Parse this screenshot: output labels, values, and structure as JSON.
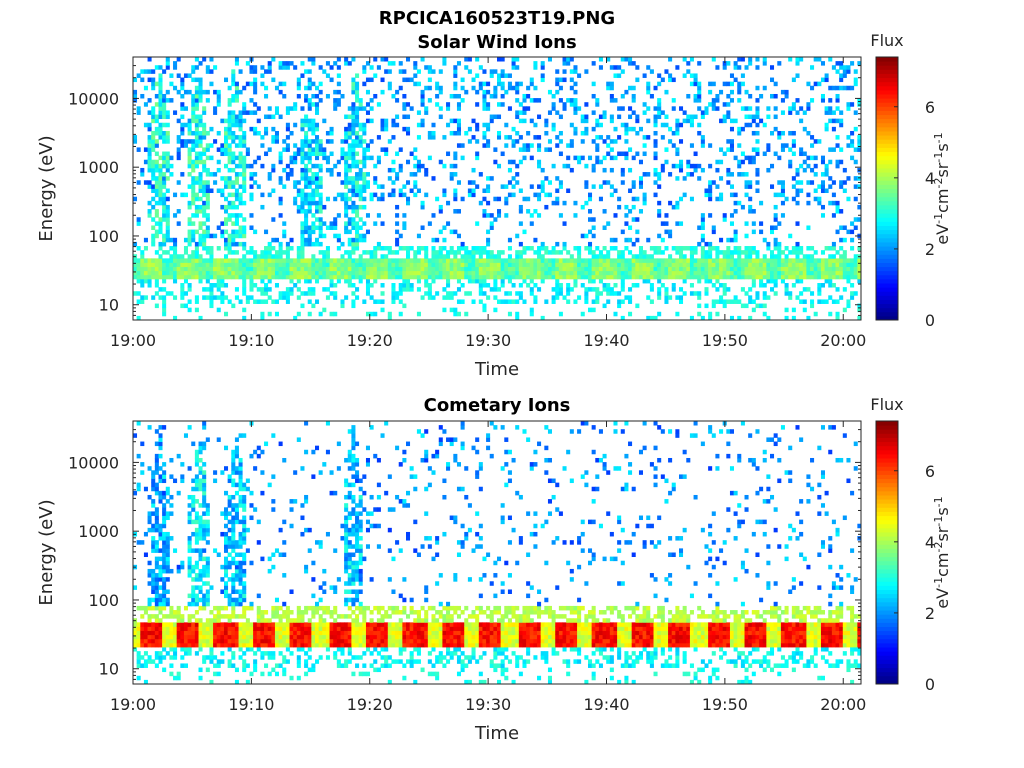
{
  "figure_title": "RPCICA160523T19.PNG",
  "colorbar_unit_parts": [
    "eV",
    "-1",
    "cm",
    "-2",
    "sr",
    "-1",
    "s",
    "-1"
  ],
  "chart_data": [
    {
      "type": "heatmap",
      "title": "Solar Wind Ions",
      "xlabel": "Time",
      "ylabel": "Energy (eV)",
      "x_ticks": [
        "19:00",
        "19:10",
        "19:20",
        "19:30",
        "19:40",
        "19:50",
        "20:00"
      ],
      "x_tick_minutes": [
        0,
        10,
        20,
        30,
        40,
        50,
        60
      ],
      "xlim_minutes": [
        0,
        61.5
      ],
      "y_scale": "log",
      "ylim": [
        6,
        40000
      ],
      "y_ticks": [
        "10",
        "100",
        "1000",
        "10000"
      ],
      "y_tick_values": [
        10,
        100,
        1000,
        10000
      ],
      "colorbar": {
        "label": "Flux",
        "range": [
          0,
          7.4
        ],
        "ticks": [
          "0",
          "2",
          "4",
          "6"
        ],
        "tick_values": [
          0,
          2,
          4,
          6
        ],
        "colormap": "jet"
      },
      "features": {
        "background_band_eV": [
          25,
          45
        ],
        "background_band_level": 3.3,
        "band_pulse_period_min": 3.2,
        "band_pulse_peak_level": 4.2,
        "scatter_density": 0.22,
        "scatter_level": 1.4,
        "bursts": [
          {
            "t_min": 2.2,
            "level": 2.6
          },
          {
            "t_min": 5.5,
            "level": 2.6
          },
          {
            "t_min": 8.5,
            "level": 2.5
          },
          {
            "t_min": 15.0,
            "level": 2.2
          },
          {
            "t_min": 18.8,
            "level": 2.4
          }
        ]
      },
      "grid": false
    },
    {
      "type": "heatmap",
      "title": "Cometary Ions",
      "xlabel": "Time",
      "ylabel": "Energy (eV)",
      "x_ticks": [
        "19:00",
        "19:10",
        "19:20",
        "19:30",
        "19:40",
        "19:50",
        "20:00"
      ],
      "x_tick_minutes": [
        0,
        10,
        20,
        30,
        40,
        50,
        60
      ],
      "xlim_minutes": [
        0,
        61.5
      ],
      "y_scale": "log",
      "ylim": [
        6,
        40000
      ],
      "y_ticks": [
        "10",
        "100",
        "1000",
        "10000"
      ],
      "y_tick_values": [
        10,
        100,
        1000,
        10000
      ],
      "colorbar": {
        "label": "Flux",
        "range": [
          0,
          7.4
        ],
        "ticks": [
          "0",
          "2",
          "4",
          "6"
        ],
        "tick_values": [
          0,
          2,
          4,
          6
        ],
        "colormap": "jet"
      },
      "features": {
        "background_band_eV": [
          22,
          50
        ],
        "background_band_level": 4.4,
        "band_pulse_period_min": 3.2,
        "band_pulse_peak_level": 6.8,
        "scatter_density": 0.09,
        "scatter_level": 1.3,
        "bursts": [
          {
            "t_min": 2.2,
            "level": 1.8
          },
          {
            "t_min": 5.6,
            "level": 2.2
          },
          {
            "t_min": 8.7,
            "level": 2.0
          },
          {
            "t_min": 18.6,
            "level": 2.0
          }
        ]
      },
      "grid": false
    }
  ]
}
